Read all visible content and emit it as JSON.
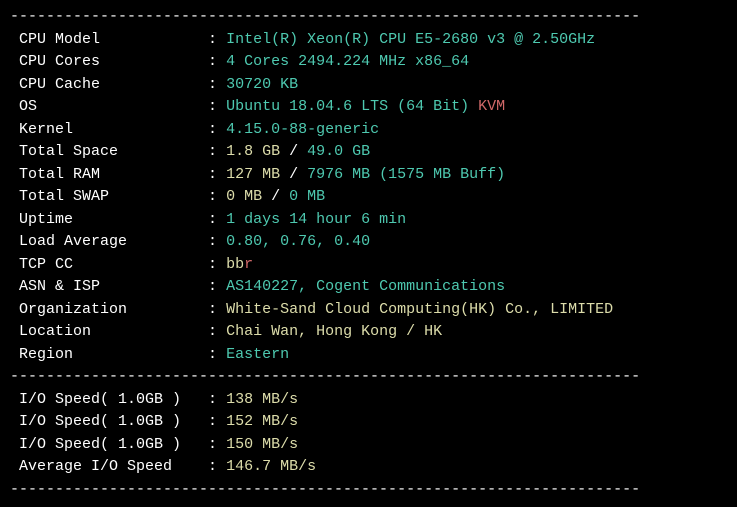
{
  "divider": "----------------------------------------------------------------------",
  "sysinfo": [
    {
      "label": "CPU Model",
      "segments": [
        {
          "text": "Intel(R) Xeon(R) CPU E5-2680 v3 @ 2.50GHz",
          "color": "cyan"
        }
      ]
    },
    {
      "label": "CPU Cores",
      "segments": [
        {
          "text": "4 Cores 2494.224 MHz x86_64",
          "color": "cyan"
        }
      ]
    },
    {
      "label": "CPU Cache",
      "segments": [
        {
          "text": "30720 KB",
          "color": "cyan"
        }
      ]
    },
    {
      "label": "OS",
      "segments": [
        {
          "text": "Ubuntu 18.04.6 LTS (64 Bit) ",
          "color": "cyan"
        },
        {
          "text": "KVM",
          "color": "red"
        }
      ]
    },
    {
      "label": "Kernel",
      "segments": [
        {
          "text": "4.15.0-88-generic",
          "color": "cyan"
        }
      ]
    },
    {
      "label": "Total Space",
      "segments": [
        {
          "text": "1.8 GB ",
          "color": "yellow"
        },
        {
          "text": "/ ",
          "color": "white"
        },
        {
          "text": "49.0 GB",
          "color": "cyan"
        }
      ]
    },
    {
      "label": "Total RAM",
      "segments": [
        {
          "text": "127 MB ",
          "color": "yellow"
        },
        {
          "text": "/ ",
          "color": "white"
        },
        {
          "text": "7976 MB ",
          "color": "cyan"
        },
        {
          "text": "(1575 MB Buff)",
          "color": "cyan"
        }
      ]
    },
    {
      "label": "Total SWAP",
      "segments": [
        {
          "text": "0 MB ",
          "color": "yellow"
        },
        {
          "text": "/ ",
          "color": "white"
        },
        {
          "text": "0 MB",
          "color": "cyan"
        }
      ]
    },
    {
      "label": "Uptime",
      "segments": [
        {
          "text": "1 days 14 hour 6 min",
          "color": "cyan"
        }
      ]
    },
    {
      "label": "Load Average",
      "segments": [
        {
          "text": "0.80, 0.76, 0.40",
          "color": "cyan"
        }
      ]
    },
    {
      "label": "TCP CC",
      "segments": [
        {
          "text": "bb",
          "color": "yellow"
        },
        {
          "text": "r",
          "color": "red"
        }
      ]
    },
    {
      "label": "ASN & ISP",
      "segments": [
        {
          "text": "AS140227, Cogent Communications",
          "color": "cyan"
        }
      ]
    },
    {
      "label": "Organization",
      "segments": [
        {
          "text": "White-Sand Cloud Computing(HK) Co., LIMITED",
          "color": "yellow"
        }
      ]
    },
    {
      "label": "Location",
      "segments": [
        {
          "text": "Chai Wan, Hong Kong / HK",
          "color": "yellow"
        }
      ]
    },
    {
      "label": "Region",
      "segments": [
        {
          "text": "Eastern",
          "color": "cyan"
        }
      ]
    }
  ],
  "iospeed": [
    {
      "label": "I/O Speed( 1.0GB )",
      "segments": [
        {
          "text": "138 MB/s",
          "color": "yellow"
        }
      ]
    },
    {
      "label": "I/O Speed( 1.0GB )",
      "segments": [
        {
          "text": "152 MB/s",
          "color": "yellow"
        }
      ]
    },
    {
      "label": "I/O Speed( 1.0GB )",
      "segments": [
        {
          "text": "150 MB/s",
          "color": "yellow"
        }
      ]
    },
    {
      "label": "Average I/O Speed",
      "segments": [
        {
          "text": "146.7 MB/s",
          "color": "yellow"
        }
      ]
    }
  ],
  "layout": {
    "label_width": 21
  }
}
